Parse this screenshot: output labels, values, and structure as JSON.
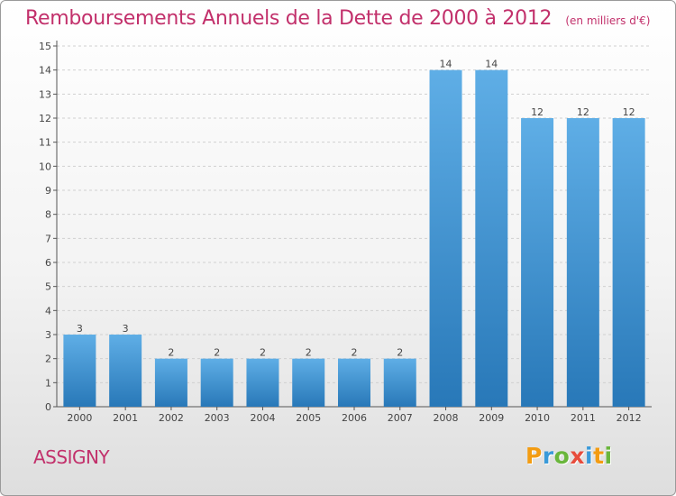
{
  "colors": {
    "accent": "#c2306b",
    "bar_light": "#5faee6",
    "bar_dark": "#2878b8",
    "grid": "#d0d0d0"
  },
  "header": {
    "title": "Remboursements Annuels de la Dette de 2000 à 2012",
    "subtitle": "(en milliers d'€)"
  },
  "footer": {
    "commune": "ASSIGNY",
    "logo": {
      "letters": [
        {
          "ch": "P",
          "color": "#f39c12"
        },
        {
          "ch": "r",
          "color": "#3a9ad9"
        },
        {
          "ch": "o",
          "color": "#6ab63c"
        },
        {
          "ch": "x",
          "color": "#e74c3c"
        },
        {
          "ch": "i",
          "color": "#3a9ad9"
        },
        {
          "ch": "t",
          "color": "#f39c12"
        },
        {
          "ch": "i",
          "color": "#6ab63c"
        }
      ]
    }
  },
  "chart_data": {
    "type": "bar",
    "title": "Remboursements Annuels de la Dette de 2000 à 2012",
    "subtitle": "(en milliers d'€)",
    "xlabel": "",
    "ylabel": "",
    "categories": [
      "2000",
      "2001",
      "2002",
      "2003",
      "2004",
      "2005",
      "2006",
      "2007",
      "2008",
      "2009",
      "2010",
      "2011",
      "2012"
    ],
    "values": [
      3,
      3,
      2,
      2,
      2,
      2,
      2,
      2,
      14,
      14,
      12,
      12,
      12
    ],
    "value_labels": [
      "3",
      "3",
      "2",
      "2",
      "2",
      "2",
      "2",
      "2",
      "14",
      "14",
      "12",
      "12",
      "12"
    ],
    "ylim": [
      0,
      15
    ],
    "yticks": [
      0,
      1,
      2,
      3,
      4,
      5,
      6,
      7,
      8,
      9,
      10,
      11,
      12,
      13,
      14,
      15
    ],
    "ytick_labels": [
      "0",
      "1",
      "2",
      "3",
      "4",
      "5",
      "6",
      "7",
      "8",
      "9",
      "10",
      "11",
      "12",
      "13",
      "14",
      "15"
    ],
    "grid": true,
    "legend": "none"
  }
}
